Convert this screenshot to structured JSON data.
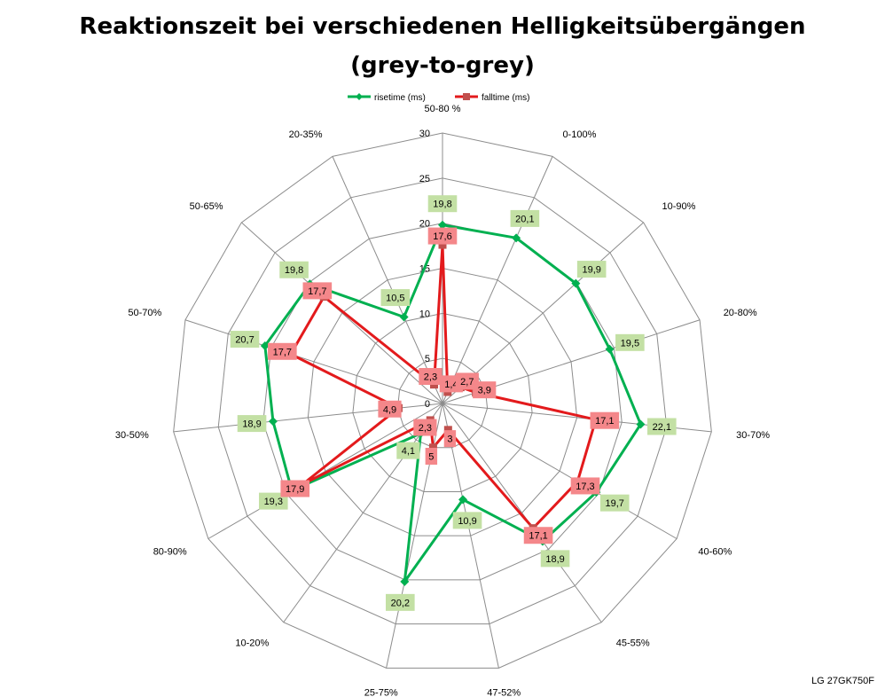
{
  "chart_data": {
    "type": "radar",
    "title": "Reaktionszeit bei verschiedenen Helligkeitsübergängen",
    "subtitle": "(grey-to-grey)",
    "categories": [
      "50-80 %",
      "0-100%",
      "10-90%",
      "20-80%",
      "30-70%",
      "40-60%",
      "45-55%",
      "47-52%",
      "25-75%",
      "10-20%",
      "80-90%",
      "30-50%",
      "50-70%",
      "50-65%",
      "20-35%"
    ],
    "series": [
      {
        "name": "risetime (ms)",
        "color": "#00b050",
        "label_bg": "#c3e0a4",
        "values": [
          19.8,
          20.1,
          19.9,
          19.5,
          22.1,
          19.7,
          18.9,
          10.9,
          20.2,
          4.1,
          19.3,
          18.9,
          20.7,
          19.8,
          10.5
        ],
        "labels": [
          "19,8",
          "20,1",
          "19,9",
          "19,5",
          "22,1",
          "19,7",
          "18,9",
          "10,9",
          "20,2",
          "4,1",
          "19,3",
          "18,9",
          "20,7",
          "19,8",
          "10,5"
        ]
      },
      {
        "name": "falltime (ms)",
        "color": "#e31a1c",
        "label_bg": "#f4878a",
        "values": [
          17.6,
          1.4,
          2.7,
          3.9,
          17.1,
          17.3,
          17.1,
          3,
          5,
          2.3,
          17.9,
          4.9,
          17.7,
          17.7,
          2.3
        ],
        "labels": [
          "17,6",
          "1,4",
          "2,7",
          "3,9",
          "17,1",
          "17,3",
          "17,1",
          "3",
          "5",
          "2,3",
          "17,9",
          "4,9",
          "17,7",
          "17,7",
          "2,3"
        ]
      }
    ],
    "r_ticks": [
      "0",
      "5",
      "10",
      "15",
      "20",
      "25",
      "30"
    ],
    "rlim": [
      0,
      30
    ],
    "grid": true,
    "legend": "top"
  },
  "watermark": "LG 27GK750F"
}
